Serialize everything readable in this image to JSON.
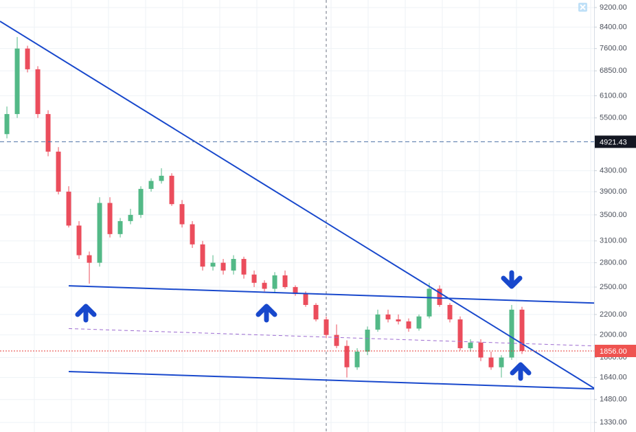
{
  "chart_data": {
    "type": "candlestick",
    "categories": [
      null,
      null,
      null,
      null,
      null,
      null,
      null,
      null,
      null,
      null,
      null,
      null,
      null,
      null,
      null,
      null,
      null,
      null,
      null,
      null,
      null,
      null,
      null,
      null,
      null,
      null,
      null,
      null,
      null,
      null,
      null,
      null,
      null,
      null,
      null,
      null,
      null,
      null,
      null,
      null,
      null,
      null,
      null,
      null,
      null,
      null,
      null,
      null,
      null,
      null,
      null
    ],
    "open": [
      5100,
      5600,
      7600,
      6900,
      5600,
      4700,
      3900,
      3330,
      2900,
      2800,
      3700,
      3200,
      3400,
      3500,
      3950,
      4100,
      4200,
      3680,
      3350,
      3050,
      2750,
      2800,
      2700,
      2850,
      2650,
      2550,
      2480,
      2640,
      2500,
      2420,
      2300,
      2150,
      2000,
      1900,
      1720,
      1850,
      2050,
      2200,
      2150,
      2130,
      2060,
      2180,
      2480,
      2300,
      2150,
      1880,
      1930,
      1800,
      1720,
      1800,
      2250
    ],
    "high": [
      5800,
      8020,
      7700,
      7000,
      5700,
      4800,
      4000,
      3400,
      2950,
      3800,
      3800,
      3450,
      3600,
      4000,
      4150,
      4350,
      4250,
      3750,
      3400,
      3100,
      2900,
      2850,
      2900,
      2880,
      2700,
      2580,
      2680,
      2700,
      2520,
      2450,
      2320,
      2180,
      2100,
      1950,
      1880,
      2080,
      2250,
      2250,
      2200,
      2160,
      2200,
      2550,
      2520,
      2320,
      2180,
      1960,
      1960,
      1850,
      1820,
      2300,
      2280
    ],
    "low": [
      5000,
      5500,
      6800,
      5500,
      4600,
      3850,
      3300,
      2850,
      2540,
      2750,
      3150,
      3150,
      3350,
      3450,
      3900,
      4050,
      3650,
      3300,
      3000,
      2700,
      2700,
      2650,
      2650,
      2600,
      2500,
      2450,
      2440,
      2480,
      2400,
      2280,
      2130,
      1970,
      1880,
      1640,
      1700,
      1820,
      2030,
      2120,
      2100,
      2030,
      2040,
      2160,
      2280,
      2120,
      1860,
      1850,
      1770,
      1700,
      1640,
      1780,
      1830
    ],
    "close": [
      5600,
      7600,
      6900,
      5600,
      4700,
      3900,
      3330,
      2900,
      2800,
      3700,
      3200,
      3400,
      3500,
      3950,
      4100,
      4200,
      3680,
      3350,
      3050,
      2750,
      2800,
      2700,
      2850,
      2650,
      2550,
      2480,
      2640,
      2500,
      2420,
      2300,
      2150,
      2000,
      1900,
      1720,
      1850,
      2050,
      2200,
      2150,
      2130,
      2060,
      2180,
      2480,
      2300,
      2150,
      1880,
      1930,
      1800,
      1720,
      1800,
      2250,
      1856
    ],
    "up_color": "#53b987",
    "down_color": "#eb4d5c",
    "xlim": [
      -0.67,
      57
    ],
    "ylim": [
      1272,
      9530
    ],
    "log_scale": true,
    "grid": true,
    "yticks": [
      {
        "value": 9200,
        "label": "9200.00"
      },
      {
        "value": 8400,
        "label": "8400.00"
      },
      {
        "value": 7600,
        "label": "7600.00"
      },
      {
        "value": 6850,
        "label": "6850.00"
      },
      {
        "value": 6100,
        "label": "6100.00"
      },
      {
        "value": 5500,
        "label": "5500.00"
      },
      {
        "value": 4300,
        "label": "4300.00"
      },
      {
        "value": 3900,
        "label": "3900.00"
      },
      {
        "value": 3500,
        "label": "3500.00"
      },
      {
        "value": 3100,
        "label": "3100.00"
      },
      {
        "value": 2800,
        "label": "2800.00"
      },
      {
        "value": 2500,
        "label": "2500.00"
      },
      {
        "value": 2200,
        "label": "2200.00"
      },
      {
        "value": 2000,
        "label": "2000.00"
      },
      {
        "value": 1800,
        "label": "1800.00"
      },
      {
        "value": 1640,
        "label": "1640.00"
      },
      {
        "value": 1480,
        "label": "1480.00"
      },
      {
        "value": 1330,
        "label": "1330.00"
      }
    ],
    "price_lines": [
      {
        "value": 4921.43,
        "label": "4921.43",
        "color": "#4a6fa5",
        "box": "#131722",
        "dash": "6 4"
      },
      {
        "value": 1856,
        "label": "1856.00",
        "color": "#e53935",
        "box": "#ef5350",
        "dash": "2 2"
      }
    ],
    "trendlines": [
      {
        "x": [
          -0.67,
          57
        ],
        "y": [
          8630,
          1560
        ],
        "color": "#1848cc",
        "dash": null
      },
      {
        "x": [
          6,
          57
        ],
        "y": [
          2515,
          2320
        ],
        "color": "#1848cc",
        "dash": null
      },
      {
        "x": [
          6,
          57
        ],
        "y": [
          1686,
          1555
        ],
        "color": "#1848cc",
        "dash": null
      },
      {
        "x": [
          6,
          57
        ],
        "y": [
          2060,
          1900
        ],
        "color": "#9c6ad0",
        "dash": "5 4"
      }
    ]
  }
}
